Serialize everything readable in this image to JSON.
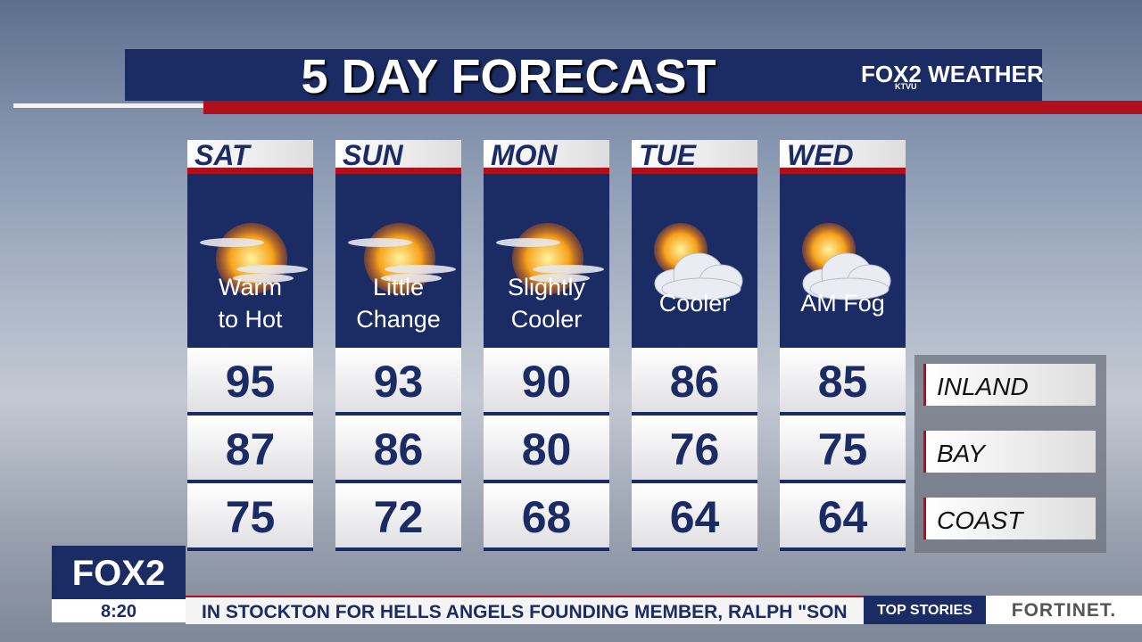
{
  "header": {
    "title": "5 DAY FORECAST",
    "brand": "FOX",
    "brand_number": "2",
    "brand_sub": "KTVU",
    "brand_weather": "WEATHER"
  },
  "days": [
    {
      "day": "SAT",
      "icon": "sun-haze",
      "desc": [
        "Warm",
        "to Hot"
      ],
      "temps": [
        95,
        87,
        75
      ]
    },
    {
      "day": "SUN",
      "icon": "sun-haze",
      "desc": [
        "Little",
        "Change"
      ],
      "temps": [
        93,
        86,
        72
      ]
    },
    {
      "day": "MON",
      "icon": "sun-haze",
      "desc": [
        "Slightly",
        "Cooler"
      ],
      "temps": [
        90,
        80,
        68
      ]
    },
    {
      "day": "TUE",
      "icon": "sun-cloud",
      "desc": [
        "Cooler"
      ],
      "temps": [
        86,
        76,
        64
      ]
    },
    {
      "day": "WED",
      "icon": "sun-cloud",
      "desc": [
        "AM Fog"
      ],
      "temps": [
        85,
        75,
        64
      ]
    }
  ],
  "regions": [
    "INLAND",
    "BAY",
    "COAST"
  ],
  "footer": {
    "logo": "FOX",
    "logo_number": "2",
    "time": "8:20",
    "ticker": "IN STOCKTON FOR HELLS ANGELS FOUNDING MEMBER, RALPH \"SON",
    "section": "TOP STORIES",
    "sponsor": "FORTINET."
  }
}
